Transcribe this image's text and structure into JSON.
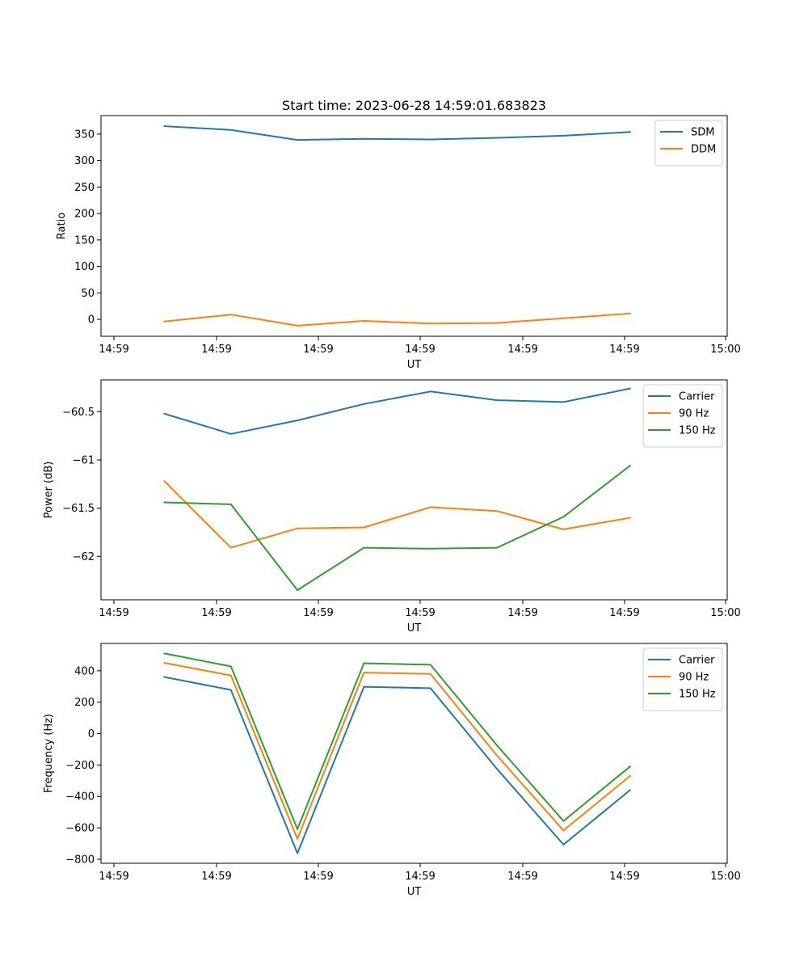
{
  "colors": {
    "blue": "#1f77b4",
    "orange": "#ff7f0e",
    "green": "#2ca02c"
  },
  "chart_data": [
    {
      "type": "line",
      "title": "Start time: 2023-06-28 14:59:01.683823",
      "xlabel": "UT",
      "ylabel": "Ratio",
      "x_ticks": [
        "14:59",
        "14:59",
        "14:59",
        "14:59",
        "14:59",
        "14:59",
        "15:00"
      ],
      "x": [
        0.5,
        1.15,
        1.8,
        2.45,
        3.1,
        3.75,
        4.4,
        5.05
      ],
      "xlim": [
        -0.12,
        6.0
      ],
      "ylim": [
        -32,
        385
      ],
      "y_ticks": [
        0,
        50,
        100,
        150,
        200,
        250,
        300,
        350
      ],
      "legend_position": "upper right",
      "series": [
        {
          "name": "SDM",
          "color": "#1f77b4",
          "values": [
            365,
            358,
            339,
            341,
            340,
            343,
            347,
            354
          ]
        },
        {
          "name": "DDM",
          "color": "#ff7f0e",
          "values": [
            -4,
            9,
            -12,
            -3,
            -8,
            -7,
            2,
            11
          ]
        }
      ]
    },
    {
      "type": "line",
      "title": "",
      "xlabel": "UT",
      "ylabel": "Power (dB)",
      "x_ticks": [
        "14:59",
        "14:59",
        "14:59",
        "14:59",
        "14:59",
        "14:59",
        "15:00"
      ],
      "x": [
        0.5,
        1.15,
        1.8,
        2.45,
        3.1,
        3.75,
        4.4,
        5.05
      ],
      "xlim": [
        -0.12,
        6.0
      ],
      "ylim": [
        -62.45,
        -60.17
      ],
      "y_ticks": [
        -62.0,
        -61.5,
        -61.0,
        -60.5
      ],
      "legend_position": "upper right",
      "series": [
        {
          "name": "Carrier",
          "color": "#1f77b4",
          "values": [
            -60.52,
            -60.73,
            -60.59,
            -60.42,
            -60.29,
            -60.38,
            -60.4,
            -60.26
          ]
        },
        {
          "name": "90 Hz",
          "color": "#ff7f0e",
          "values": [
            -61.22,
            -61.91,
            -61.71,
            -61.7,
            -61.49,
            -61.53,
            -61.72,
            -61.6
          ]
        },
        {
          "name": "150 Hz",
          "color": "#2ca02c",
          "values": [
            -61.44,
            -61.46,
            -62.35,
            -61.91,
            -61.92,
            -61.91,
            -61.59,
            -61.06
          ]
        }
      ]
    },
    {
      "type": "line",
      "title": "",
      "xlabel": "UT",
      "ylabel": "Frequency (Hz)",
      "x_ticks": [
        "14:59",
        "14:59",
        "14:59",
        "14:59",
        "14:59",
        "14:59",
        "15:00"
      ],
      "x": [
        0.5,
        1.15,
        1.8,
        2.45,
        3.1,
        3.75,
        4.4,
        5.05
      ],
      "xlim": [
        -0.12,
        6.0
      ],
      "ylim": [
        -826,
        574
      ],
      "y_ticks": [
        -800,
        -600,
        -400,
        -200,
        0,
        200,
        400
      ],
      "legend_position": "upper right",
      "series": [
        {
          "name": "Carrier",
          "color": "#1f77b4",
          "values": [
            360,
            278,
            -762,
            298,
            289,
            -225,
            -707,
            -360
          ]
        },
        {
          "name": "90 Hz",
          "color": "#ff7f0e",
          "values": [
            450,
            370,
            -670,
            388,
            380,
            -140,
            -617,
            -270
          ]
        },
        {
          "name": "150 Hz",
          "color": "#2ca02c",
          "values": [
            510,
            428,
            -609,
            448,
            438,
            -75,
            -557,
            -210
          ]
        }
      ]
    }
  ]
}
